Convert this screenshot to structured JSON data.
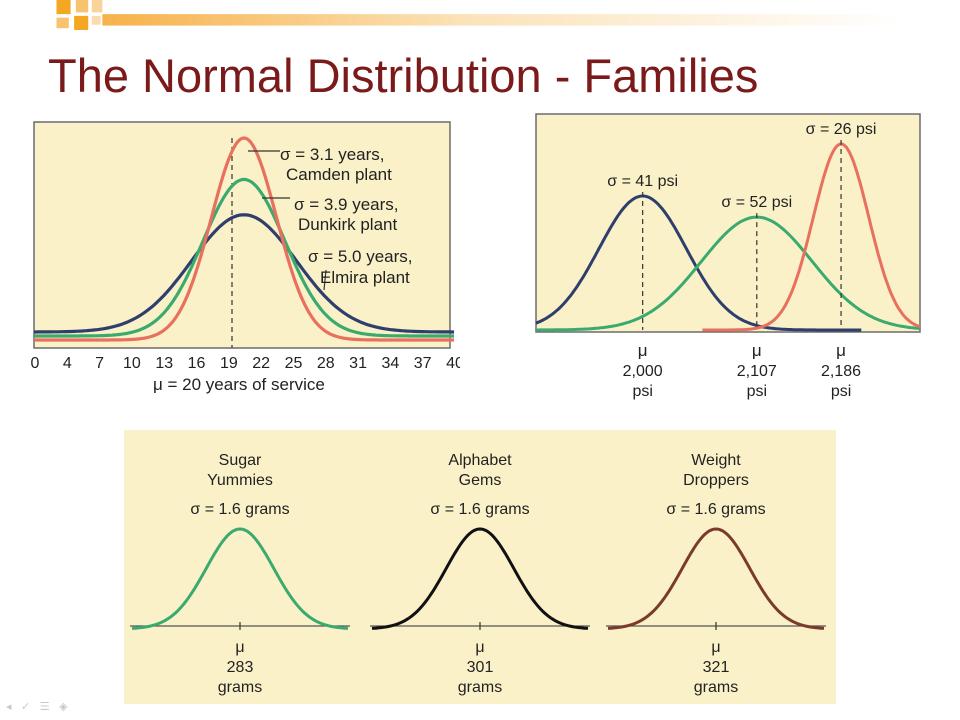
{
  "slide": {
    "title": "The Normal Distribution - Families",
    "colors": {
      "title": "#7b1a1a",
      "accent_orange": "#f5a623",
      "panel_bg": "#fbf1c8"
    }
  },
  "chart_data": [
    {
      "type": "line",
      "name": "service-years",
      "x_ticks": [
        "0",
        "4",
        "7",
        "10",
        "13",
        "16",
        "19",
        "22",
        "25",
        "28",
        "31",
        "34",
        "37",
        "40"
      ],
      "xlim": [
        0,
        40
      ],
      "mean": 20,
      "mean_label": "μ = 20 years of service",
      "series": [
        {
          "name": "Camden plant",
          "sigma": 3.1,
          "label_line1": "σ = 3.1 years,",
          "label_line2": "Camden plant",
          "color": "#e8705e"
        },
        {
          "name": "Dunkirk plant",
          "sigma": 3.9,
          "label_line1": "σ = 3.9 years,",
          "label_line2": "Dunkirk plant",
          "color": "#3aaa6e"
        },
        {
          "name": "Elmira plant",
          "sigma": 5.0,
          "label_line1": "σ = 5.0 years,",
          "label_line2": "Elmira plant",
          "color": "#2e3f6e"
        }
      ],
      "grid": false
    },
    {
      "type": "line",
      "name": "psi",
      "series": [
        {
          "mean": 2000,
          "sigma": 41,
          "sigma_label": "σ = 41 psi",
          "mu_symbol": "μ",
          "mean_label": "2,000",
          "unit": "psi",
          "color": "#2e3f6e"
        },
        {
          "mean": 2107,
          "sigma": 52,
          "sigma_label": "σ = 52 psi",
          "mu_symbol": "μ",
          "mean_label": "2,107",
          "unit": "psi",
          "color": "#3aaa6e"
        },
        {
          "mean": 2186,
          "sigma": 26,
          "sigma_label": "σ = 26 psi",
          "mu_symbol": "μ",
          "mean_label": "2,186",
          "unit": "psi",
          "color": "#e8705e"
        }
      ],
      "grid": false
    },
    {
      "type": "line",
      "name": "grams",
      "series": [
        {
          "name_line1": "Sugar",
          "name_line2": "Yummies",
          "sigma": 1.6,
          "sigma_label": "σ = 1.6 grams",
          "mu_symbol": "μ",
          "mean": 283,
          "mean_label": "283",
          "unit": "grams",
          "color": "#3aaa6e"
        },
        {
          "name_line1": "Alphabet",
          "name_line2": "Gems",
          "sigma": 1.6,
          "sigma_label": "σ = 1.6 grams",
          "mu_symbol": "μ",
          "mean": 301,
          "mean_label": "301",
          "unit": "grams",
          "color": "#111111"
        },
        {
          "name_line1": "Weight",
          "name_line2": "Droppers",
          "sigma": 1.6,
          "sigma_label": "σ = 1.6 grams",
          "mu_symbol": "μ",
          "mean": 321,
          "mean_label": "321",
          "unit": "grams",
          "color": "#7a3b2a"
        }
      ],
      "grid": false
    }
  ]
}
